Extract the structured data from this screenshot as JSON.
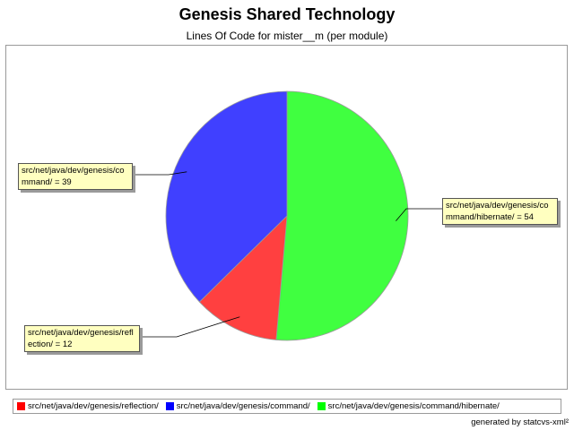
{
  "chart_data": {
    "type": "pie",
    "title": "Genesis Shared Technology",
    "subtitle": "Lines Of Code for mister__m (per module)",
    "slices": [
      {
        "label": "src/net/java/dev/genesis/command/hibernate/",
        "value": 54,
        "color": "#40ff40",
        "callout": "src/net/java/dev/genesis/command/hibernate/ = 54"
      },
      {
        "label": "src/net/java/dev/genesis/reflection/",
        "value": 12,
        "color": "#ff4040",
        "callout": "src/net/java/dev/genesis/reflection/ = 12"
      },
      {
        "label": "src/net/java/dev/genesis/command/",
        "value": 39,
        "color": "#4040ff",
        "callout": "src/net/java/dev/genesis/command/ = 39"
      }
    ],
    "legend": {
      "placement": "bottom",
      "items": [
        {
          "label": "src/net/java/dev/genesis/reflection/",
          "color": "#ff0000"
        },
        {
          "label": "src/net/java/dev/genesis/command/",
          "color": "#0000ff"
        },
        {
          "label": "src/net/java/dev/genesis/command/hibernate/",
          "color": "#00ff00"
        }
      ]
    }
  },
  "footer": "generated by statcvs-xml²"
}
